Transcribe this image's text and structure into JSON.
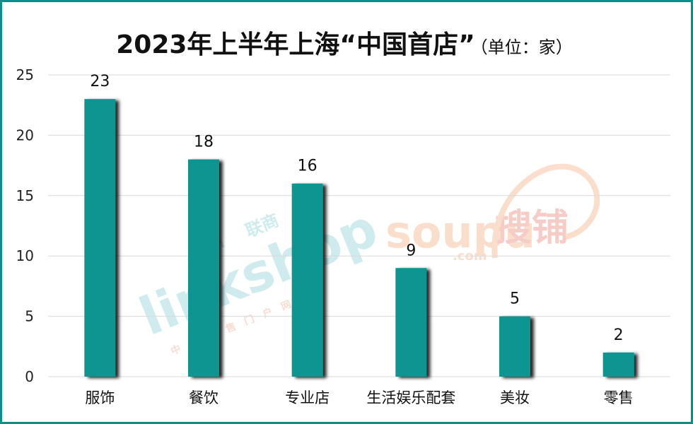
{
  "chart_data": {
    "type": "bar",
    "title": "2023年上半年上海“中国首店”",
    "subtitle": "（单位：家）",
    "categories": [
      "服饰",
      "餐饮",
      "专业店",
      "生活娱乐配套",
      "美妆",
      "零售"
    ],
    "values": [
      23,
      18,
      16,
      9,
      5,
      2
    ],
    "ylim": [
      0,
      25
    ],
    "yticks": [
      0,
      5,
      10,
      15,
      20,
      25
    ],
    "grid": true,
    "bar_color": "#0a9691"
  },
  "watermarks": {
    "linkshop": "linkshop",
    "linkshop_com": ".com",
    "linkshop_cn": "联商",
    "linkshop_sub": "中国零售门户网站",
    "soupu": "soupu",
    "soupu_cn": "搜铺",
    "soupu_com": ".com"
  }
}
